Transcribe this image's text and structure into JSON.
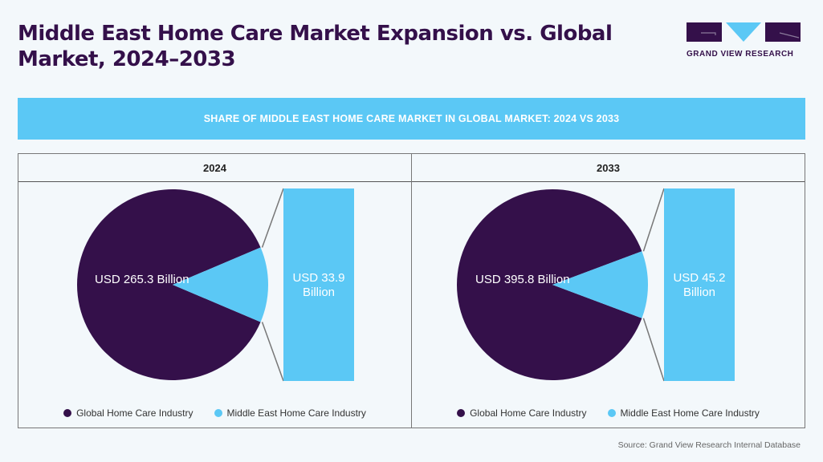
{
  "title": "Middle East Home Care Market Expansion vs. Global Market, 2024–2033",
  "brand": "GRAND VIEW RESEARCH",
  "banner": "SHARE OF MIDDLE EAST HOME CARE MARKET IN GLOBAL MARKET: 2024 VS 2033",
  "source": "Source: Grand View Research Internal Database",
  "colors": {
    "global": "#34104a",
    "middle_east": "#5bc8f5"
  },
  "chart_data": [
    {
      "type": "pie",
      "title": "2024",
      "unit": "USD Billion",
      "series": [
        {
          "name": "Global Home Care Industry",
          "value": 265.3,
          "label": "USD 265.3 Billion"
        },
        {
          "name": "Middle East Home Care Industry",
          "value": 33.9,
          "label": "USD 33.9 Billion"
        }
      ],
      "legend": "bottom"
    },
    {
      "type": "pie",
      "title": "2033",
      "unit": "USD Billion",
      "series": [
        {
          "name": "Global Home Care Industry",
          "value": 395.8,
          "label": "USD 395.8 Billion"
        },
        {
          "name": "Middle East Home Care Industry",
          "value": 45.2,
          "label": "USD 45.2 Billion"
        }
      ],
      "legend": "bottom"
    }
  ]
}
